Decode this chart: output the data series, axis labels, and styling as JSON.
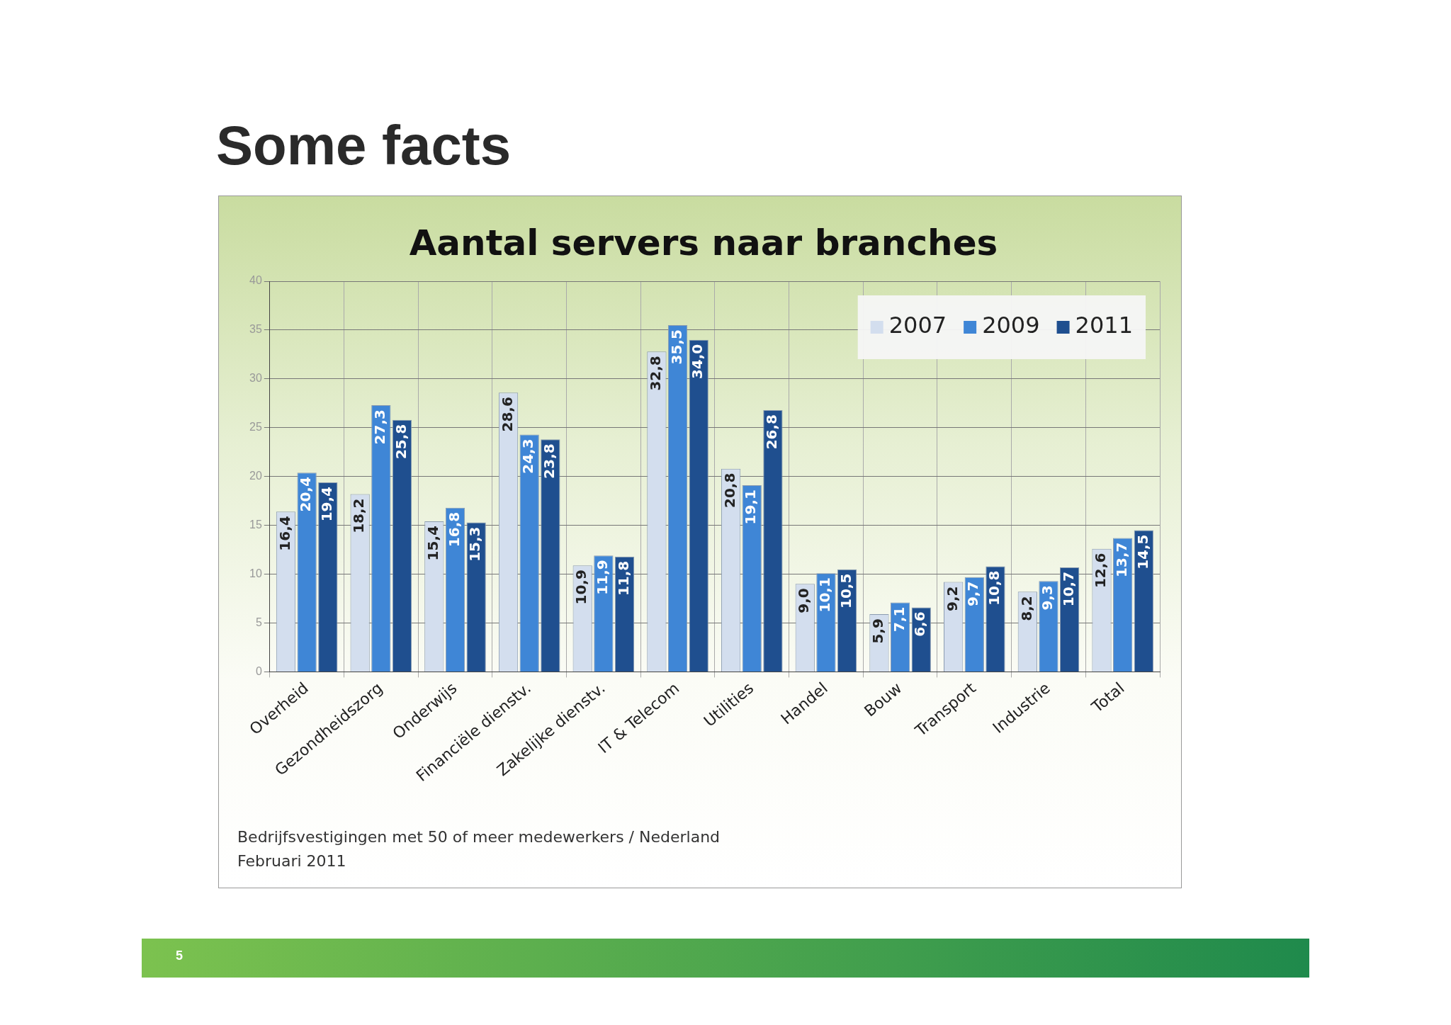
{
  "chart_data": {
    "type": "bar",
    "title": "Some facts",
    "subtitle": "Aantal servers naar branches",
    "categories": [
      "Overheid",
      "Gezondheidszorg",
      "Onderwijs",
      "Financiële dienstv.",
      "Zakelijke dienstv.",
      "IT & Telecom",
      "Utilities",
      "Handel",
      "Bouw",
      "Transport",
      "Industrie",
      "Total"
    ],
    "series": [
      {
        "name": "2007",
        "color": "#d3deee",
        "values": [
          16.4,
          18.2,
          15.4,
          28.6,
          10.9,
          32.8,
          20.8,
          9.0,
          5.9,
          9.2,
          8.2,
          12.6
        ],
        "value_labels": [
          "16,4",
          "18,2",
          "15,4",
          "28,6",
          "10,9",
          "32,8",
          "20,8",
          "9,0",
          "5,9",
          "9,2",
          "8,2",
          "12,6"
        ]
      },
      {
        "name": "2009",
        "color": "#3f86d6",
        "values": [
          20.4,
          27.3,
          16.8,
          24.3,
          11.9,
          35.5,
          19.1,
          10.1,
          7.1,
          9.7,
          9.3,
          13.7
        ],
        "value_labels": [
          "20,4",
          "27,3",
          "16,8",
          "24,3",
          "11,9",
          "35,5",
          "19,1",
          "10,1",
          "7,1",
          "9,7",
          "9,3",
          "13,7"
        ]
      },
      {
        "name": "2011",
        "color": "#1f4f8f",
        "values": [
          19.4,
          25.8,
          15.3,
          23.8,
          11.8,
          34.0,
          26.8,
          10.5,
          6.6,
          10.8,
          10.7,
          14.5
        ],
        "value_labels": [
          "19,4",
          "25,8",
          "15,3",
          "23,8",
          "11,8",
          "34,0",
          "26,8",
          "10,5",
          "6,6",
          "10,8",
          "10,7",
          "14,5"
        ]
      }
    ],
    "ylim": [
      0,
      40
    ],
    "yticks": [
      0,
      5,
      10,
      15,
      20,
      25,
      30,
      35,
      40
    ],
    "grid": true,
    "legend": "top right",
    "annotations": [
      "Bedrijfsvestigingen met 50 of meer medewerkers / Nederland",
      "Februari 2011",
      "5"
    ]
  }
}
